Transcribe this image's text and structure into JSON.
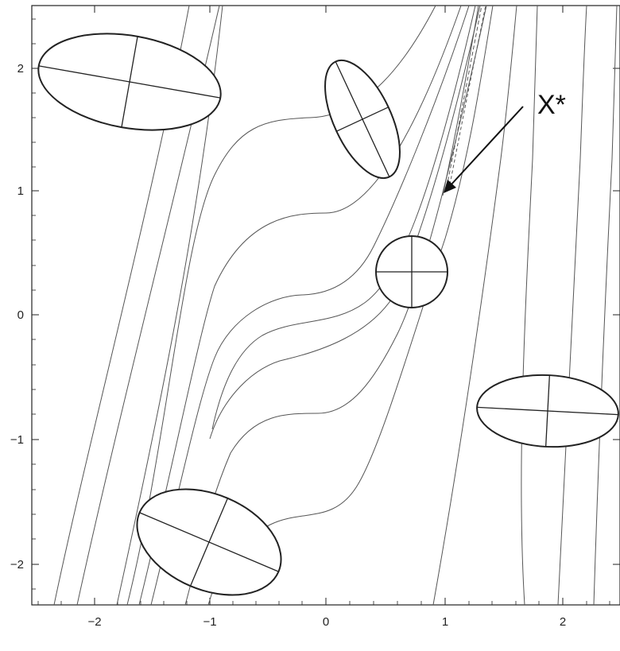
{
  "figure": {
    "x_ticks": [
      "−2",
      "−1",
      "0",
      "1",
      "2"
    ],
    "y_ticks": [
      "2",
      "1",
      "0",
      "−1",
      "−2"
    ],
    "optimum_label": "X*"
  },
  "chart_data": {
    "type": "contour",
    "x_range": [
      -2.5,
      2.5
    ],
    "y_range": [
      -2.5,
      2.5
    ],
    "x_ticks": [
      -2,
      -1,
      0,
      1,
      2
    ],
    "y_ticks": [
      -2,
      -1,
      0,
      1,
      2
    ],
    "optimum": {
      "x": 1,
      "y": 1
    },
    "ellipse_centers": [
      {
        "x": -1.6,
        "y": 1.9
      },
      {
        "x": 0.3,
        "y": 1.6
      },
      {
        "x": 0.75,
        "y": 0.35
      },
      {
        "x": 1.85,
        "y": -0.77
      },
      {
        "x": -0.95,
        "y": -1.82
      }
    ]
  }
}
